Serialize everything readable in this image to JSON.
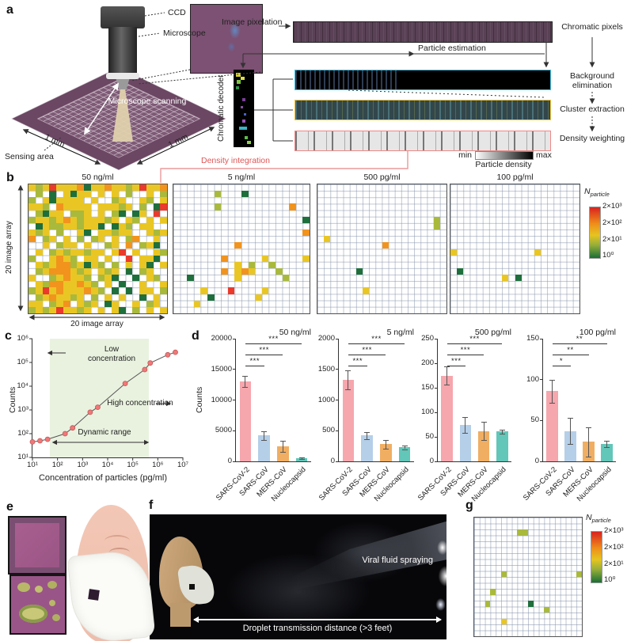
{
  "panel_a": {
    "label": "a",
    "ccd": "CCD",
    "microscope": "Microscope",
    "scanning": "Microscope scanning",
    "dim_left": "1 mm",
    "dim_right": "1 mm",
    "sensing": "Sensing area",
    "image_pixelation": "Image pixelation",
    "particle_estimation": "Particle estimation",
    "chromatic_decoder": "Chromatic decoder",
    "density_integration": "Density integration",
    "flow": [
      "Chromatic pixels",
      "Background elimination",
      "Cluster extraction",
      "Density weighting"
    ],
    "density_scale": {
      "min": "min",
      "max": "max",
      "label": "Particle density"
    }
  },
  "panel_b": {
    "label": "b",
    "y_axis": "20 image array",
    "x_axis": "20 image array"
  },
  "panel_c": {
    "label": "c"
  },
  "panel_d": {
    "label": "d",
    "ylabel": "Counts"
  },
  "panel_e": {
    "label": "e"
  },
  "panel_f": {
    "label": "f",
    "spray": "Viral fluid spraying",
    "distance": "Droplet transmission distance (>3 feet)"
  },
  "panel_g": {
    "label": "g"
  },
  "colorbar": {
    "n": "N",
    "sub": "particle",
    "ticks": [
      "2×10³",
      "2×10²",
      "2×10¹",
      "10⁰"
    ]
  },
  "heatmap_palette": {
    "g": "#1e6f3c",
    "o": "#a9b93c",
    "y": "#e9c624",
    "O": "#f2931d",
    "r": "#e93a2c"
  },
  "chart_data": [
    {
      "id": "c",
      "type": "scatter",
      "xlabel": "Concentration of particles (pg/ml)",
      "ylabel": "Counts",
      "x": [
        10,
        20,
        40,
        200,
        400,
        2000,
        4000,
        50000,
        300000,
        500000,
        2500000,
        5000000
      ],
      "y": [
        45,
        50,
        58,
        100,
        175,
        800,
        1300,
        13000,
        50000,
        95000,
        210000,
        270000
      ],
      "xlim": [
        10,
        10000000
      ],
      "ylim": [
        10,
        1000000
      ],
      "xscale": "log",
      "yscale": "log",
      "xticks": [
        "10¹",
        "10²",
        "10³",
        "10⁴",
        "10⁵",
        "10⁶",
        "10⁷"
      ],
      "yticks": [
        "10¹",
        "10²",
        "10³",
        "10⁴",
        "10⁵",
        "10⁶"
      ],
      "band": [
        50,
        450000
      ],
      "band_color": "#e9f2df",
      "point_color": "#f07878",
      "annotations": {
        "low": "Low concentration",
        "high": "High concentration",
        "range": "Dynamic range"
      }
    },
    {
      "id": "d1",
      "type": "bar",
      "title": "50 ng/ml",
      "ylabel": "Counts",
      "categories": [
        "SARS-CoV-2",
        "SARS-CoV",
        "MERS-CoV",
        "Nucleocapsid"
      ],
      "values": [
        13000,
        4200,
        2500,
        500
      ],
      "errors": [
        900,
        700,
        900,
        150
      ],
      "ymax": 20000,
      "yticks": [
        0,
        5000,
        10000,
        15000,
        20000
      ],
      "sig": [
        "***",
        "***",
        "***"
      ],
      "colors": [
        "#f6a6ad",
        "#b5cfe8",
        "#f0ae62",
        "#62c6b8"
      ]
    },
    {
      "id": "d2",
      "type": "bar",
      "title": "5 ng/ml",
      "categories": [
        "SARS-CoV-2",
        "SARS-CoV",
        "MERS-CoV",
        "Nucleocapsid"
      ],
      "values": [
        1330,
        420,
        280,
        230
      ],
      "errors": [
        150,
        60,
        70,
        30
      ],
      "ymax": 2000,
      "yticks": [
        0,
        500,
        1000,
        1500,
        2000
      ],
      "sig": [
        "***",
        "***",
        "***"
      ],
      "colors": [
        "#f6a6ad",
        "#b5cfe8",
        "#f0ae62",
        "#62c6b8"
      ]
    },
    {
      "id": "d3",
      "type": "bar",
      "title": "500 pg/ml",
      "categories": [
        "SARS-CoV-2",
        "SARS-CoV",
        "MERS-CoV",
        "Nucleocapsid"
      ],
      "values": [
        175,
        74,
        62,
        61
      ],
      "errors": [
        19,
        16,
        18,
        4
      ],
      "ymax": 250,
      "yticks": [
        0,
        50,
        100,
        150,
        200,
        250
      ],
      "sig": [
        "***",
        "***",
        "***"
      ],
      "colors": [
        "#f6a6ad",
        "#b5cfe8",
        "#f0ae62",
        "#62c6b8"
      ]
    },
    {
      "id": "d4",
      "type": "bar",
      "title": "100 pg/ml",
      "categories": [
        "SARS-CoV-2",
        "SARS-CoV",
        "MERS-CoV",
        "Nucleocapsid"
      ],
      "values": [
        86,
        37,
        24,
        21
      ],
      "errors": [
        14,
        16,
        18,
        4
      ],
      "ymax": 150,
      "yticks": [
        0,
        50,
        100,
        150
      ],
      "sig": [
        "*",
        "**",
        "**"
      ],
      "colors": [
        "#f6a6ad",
        "#b5cfe8",
        "#f0ae62",
        "#62c6b8"
      ]
    },
    {
      "id": "b1",
      "type": "heatmap",
      "title": "50 ng/ml",
      "size": 20,
      "rows": [
        "yoyryyyOgyyOyyoyryyO",
        ".o.g.ygyy.y.y.o..y.o",
        "o.ygyyyy.y..oy..yo.y",
        "yyo.Oyyyy.yyyoy.o.gr",
        ".ogyy.ooy.y.og.gy.r.",
        "oyyoyOyoyyyoy.yo.y.y",
        ".gyooyyoyyg.gyo.yy..",
        "yoy.o..yg.yyoyy..yoy",
        "O.oy.y.o.oy.y.oO..y.",
        "..y.oyy.y..oy.O.oyg.",
        ".y.oyoyyoyy.yr.y..yo",
        "o..yOyo.yy.y..r.yyg.",
        ".yoyOOoygyo.o.y.yg.y",
        ".oyOOOyoy.yoy.g.oy..",
        "y..oyOyyo.oyg..g.yo.",
        ".yoOOyyOyo.y.g..y..y",
        "oyryOyyyOyo.g.g.yy.o",
        ".oyOyyoy.o.y.y..g.y.",
        "yy.oyO.yoy.gy..y.oy.",
        "oyoyryyoy.y.yg.o.y.y"
      ]
    },
    {
      "id": "b2",
      "type": "heatmap",
      "title": "5 ng/ml",
      "size": 20,
      "rows": [
        "....................",
        "......o...g.........",
        "....................",
        "......o..........O..",
        "....................",
        "...................g",
        "....................",
        "...................O",
        "....................",
        ".........O..........",
        "....................",
        ".......O.....y.....y",
        ".........y.o..o.....",
        ".......O.yOy...o....",
        "..g......y......o...",
        "....................",
        "....y...r....y......",
        ".....g......y.......",
        "...y................",
        "...................."
      ]
    },
    {
      "id": "b3",
      "type": "heatmap",
      "title": "500 pg/ml",
      "size": 20,
      "rows": [
        "....................",
        "....................",
        "....................",
        "....................",
        "....................",
        "..................o.",
        "..................o.",
        "....................",
        ".y..................",
        "..........O.........",
        "....................",
        "....................",
        "....................",
        "......g.............",
        "....................",
        "....................",
        ".......y............",
        "....................",
        "....................",
        "...................."
      ]
    },
    {
      "id": "b4",
      "type": "heatmap",
      "title": "100 pg/ml",
      "size": 20,
      "rows": [
        "....................",
        "....................",
        "....................",
        "....................",
        "....................",
        "....................",
        "....................",
        "....................",
        "....................",
        "....................",
        "y............y......",
        "....................",
        "....................",
        ".g..................",
        "........y.g.........",
        "....................",
        "....................",
        "....................",
        "....................",
        "...................."
      ]
    },
    {
      "id": "g1",
      "type": "heatmap",
      "size": 20,
      "rows": [
        "....................",
        "....................",
        "........oo..........",
        "....................",
        "....................",
        "....................",
        "....................",
        "....................",
        "....................",
        ".....o.............o",
        "....................",
        "....................",
        "...o................",
        "....................",
        "..o.......g.........",
        ".............o......",
        "....................",
        ".....y..............",
        "....................",
        "...................."
      ]
    }
  ]
}
